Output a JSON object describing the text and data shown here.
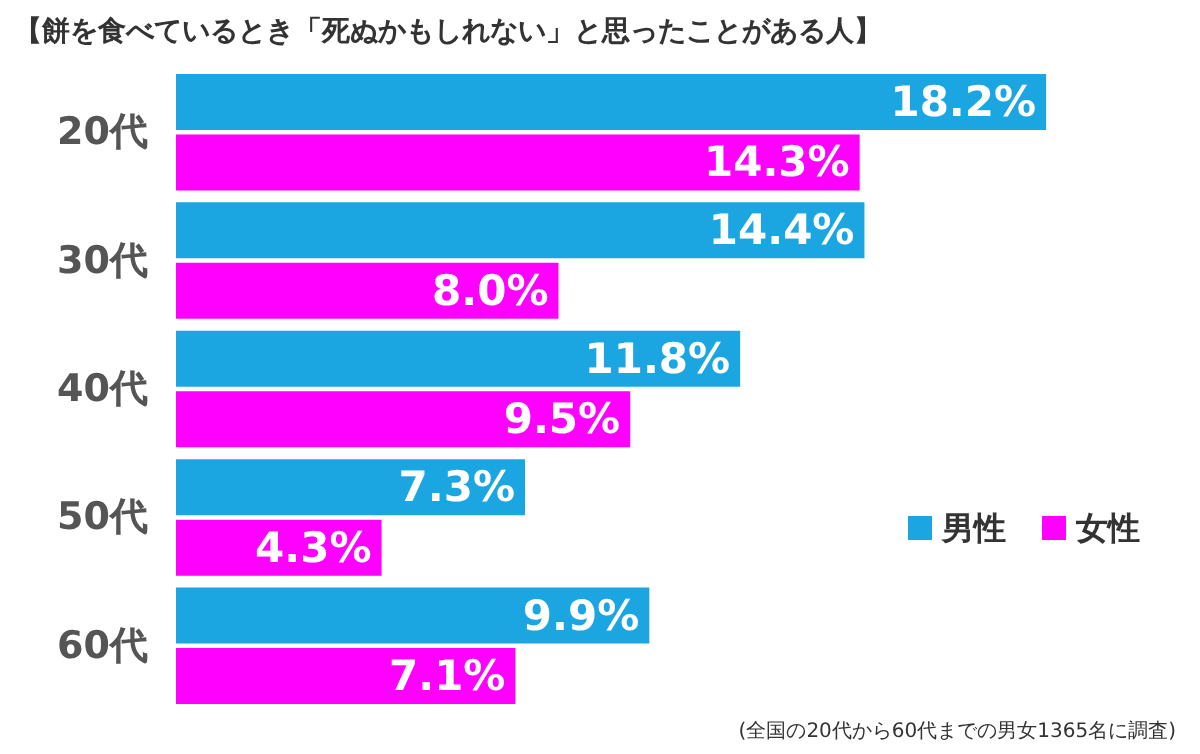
{
  "chart_data": {
    "type": "bar",
    "orientation": "horizontal",
    "title": "【餅を食べているとき「死ぬかもしれない」と思ったことがある人】",
    "categories": [
      "20代",
      "30代",
      "40代",
      "50代",
      "60代"
    ],
    "series": [
      {
        "name": "男性",
        "color": "#1ba6e2",
        "values": [
          18.2,
          14.4,
          11.8,
          7.3,
          9.9
        ],
        "value_labels": [
          "18.2%",
          "14.4%",
          "11.8%",
          "7.3%",
          "9.9%"
        ]
      },
      {
        "name": "女性",
        "color": "#ff00ff",
        "values": [
          14.3,
          8.0,
          9.5,
          4.3,
          7.1
        ],
        "value_labels": [
          "14.3%",
          "8.0%",
          "9.5%",
          "4.3%",
          "7.1%"
        ]
      }
    ],
    "legend": "right",
    "annotations": [
      "(全国の20代から60代までの男女1365名に調査)"
    ]
  }
}
